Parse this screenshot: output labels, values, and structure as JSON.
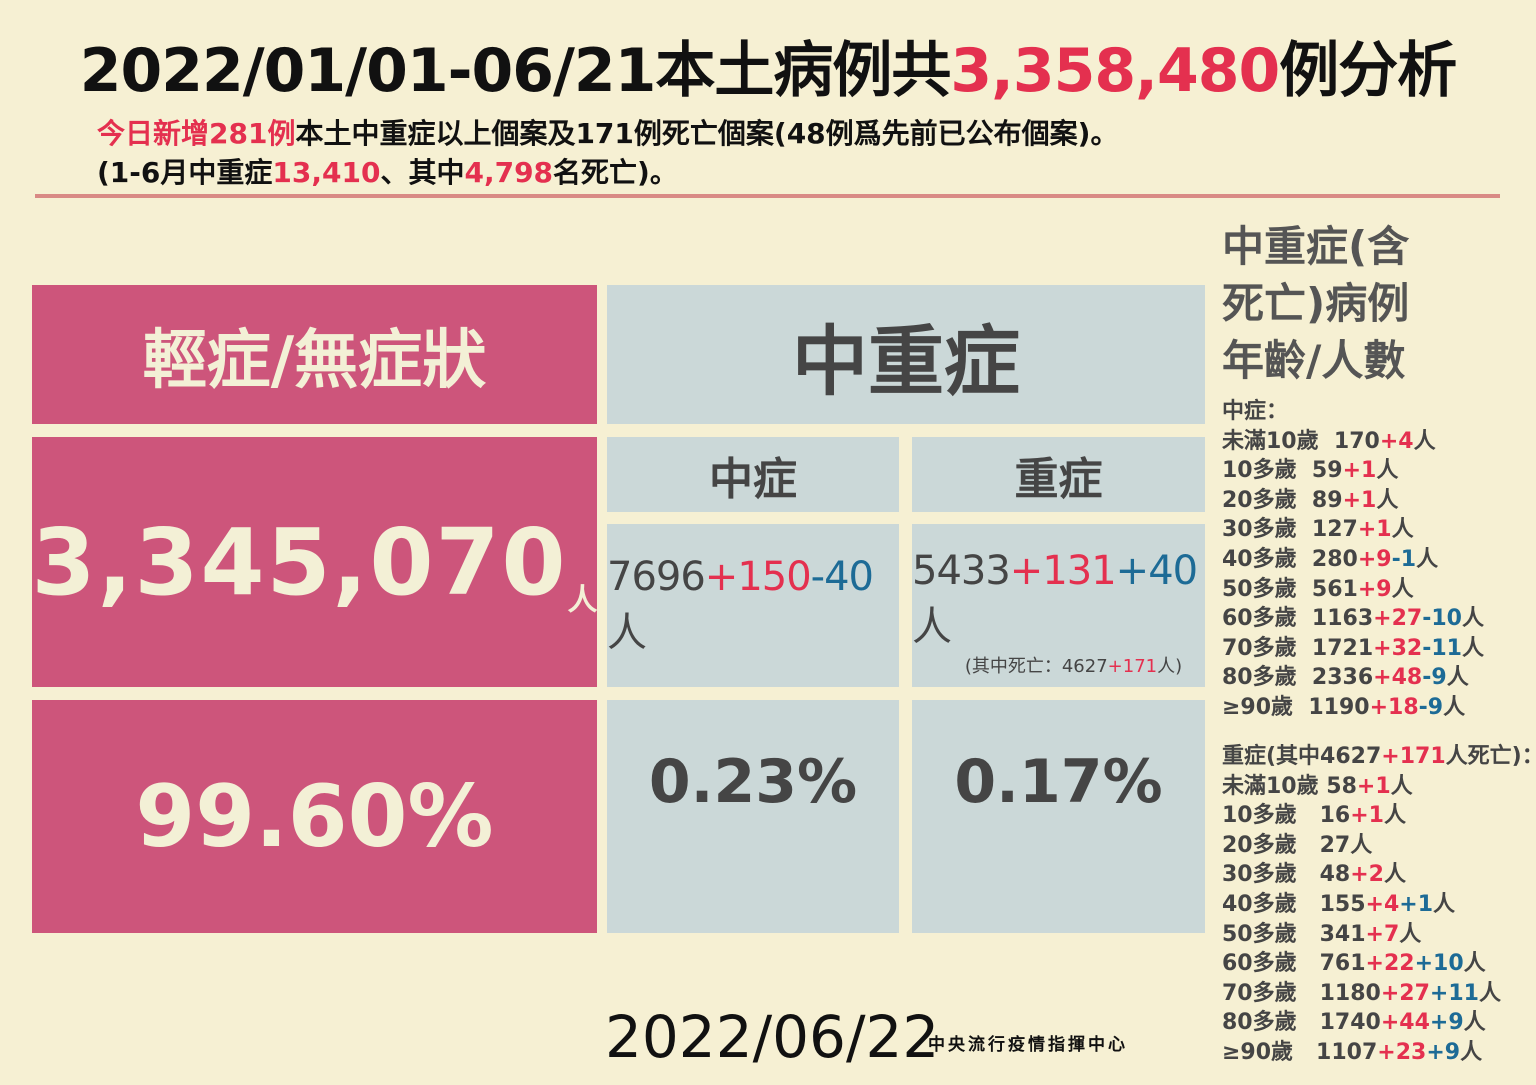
{
  "colors": {
    "background": "#f6f0d3",
    "pink": "#cd557b",
    "pale": "#cbd8d8",
    "red": "#e4304f",
    "blue": "#1d6b96",
    "dark": "#454545"
  },
  "title": [
    {
      "t": "2022/01/01-06/21本土病例共",
      "c": "k"
    },
    {
      "t": "3,358,480",
      "c": "r"
    },
    {
      "t": "例分析",
      "c": "k"
    }
  ],
  "subtitle_line1": [
    {
      "t": "今日新增281例",
      "c": "r"
    },
    {
      "t": "本土中重症以上個案及171例死亡個案(48例爲先前已公布個案)。",
      "c": "k"
    }
  ],
  "subtitle_line2": [
    {
      "t": "(1-6月中重症",
      "c": "k"
    },
    {
      "t": "13,410",
      "c": "r"
    },
    {
      "t": "、其中",
      "c": "k"
    },
    {
      "t": "4,798",
      "c": "r"
    },
    {
      "t": "名死亡)。",
      "c": "k"
    }
  ],
  "mild": {
    "header": "輕症/無症狀",
    "count": "3,345,070",
    "unit": "人",
    "percent": "99.60%"
  },
  "severe": {
    "header": "中重症",
    "moderate": {
      "label": "中症",
      "count": [
        {
          "t": "7696",
          "c": "d"
        },
        {
          "t": "+150",
          "c": "r"
        },
        {
          "t": "-40",
          "c": "b"
        },
        {
          "t": "人",
          "c": "d"
        }
      ],
      "percent": "0.23%"
    },
    "critical": {
      "label": "重症",
      "count": [
        {
          "t": "5433",
          "c": "d"
        },
        {
          "t": "+131",
          "c": "r"
        },
        {
          "t": "+40",
          "c": "b"
        },
        {
          "t": "人",
          "c": "d"
        }
      ],
      "note": [
        {
          "t": "(其中死亡：4627",
          "c": "d"
        },
        {
          "t": "+171",
          "c": "r"
        },
        {
          "t": "人)",
          "c": "d"
        }
      ],
      "percent": "0.17%"
    }
  },
  "age_panel": {
    "heading": [
      "中重症(含",
      "死亡)病例",
      "年齡/人數"
    ],
    "moderate_title": [
      {
        "t": "中症：",
        "c": "d"
      }
    ],
    "moderate_rows": [
      [
        {
          "t": "未滿10歲  170",
          "c": "d"
        },
        {
          "t": "+4",
          "c": "r"
        },
        {
          "t": "人",
          "c": "d"
        }
      ],
      [
        {
          "t": "10多歲  59",
          "c": "d"
        },
        {
          "t": "+1",
          "c": "r"
        },
        {
          "t": "人",
          "c": "d"
        }
      ],
      [
        {
          "t": "20多歲  89",
          "c": "d"
        },
        {
          "t": "+1",
          "c": "r"
        },
        {
          "t": "人",
          "c": "d"
        }
      ],
      [
        {
          "t": "30多歲  127",
          "c": "d"
        },
        {
          "t": "+1",
          "c": "r"
        },
        {
          "t": "人",
          "c": "d"
        }
      ],
      [
        {
          "t": "40多歲  280",
          "c": "d"
        },
        {
          "t": "+9",
          "c": "r"
        },
        {
          "t": "-1",
          "c": "b"
        },
        {
          "t": "人",
          "c": "d"
        }
      ],
      [
        {
          "t": "50多歲  561",
          "c": "d"
        },
        {
          "t": "+9",
          "c": "r"
        },
        {
          "t": "人",
          "c": "d"
        }
      ],
      [
        {
          "t": "60多歲  1163",
          "c": "d"
        },
        {
          "t": "+27",
          "c": "r"
        },
        {
          "t": "-10",
          "c": "b"
        },
        {
          "t": "人",
          "c": "d"
        }
      ],
      [
        {
          "t": "70多歲  1721",
          "c": "d"
        },
        {
          "t": "+32",
          "c": "r"
        },
        {
          "t": "-11",
          "c": "b"
        },
        {
          "t": "人",
          "c": "d"
        }
      ],
      [
        {
          "t": "80多歲  2336",
          "c": "d"
        },
        {
          "t": "+48",
          "c": "r"
        },
        {
          "t": "-9",
          "c": "b"
        },
        {
          "t": "人",
          "c": "d"
        }
      ],
      [
        {
          "t": "≥90歲  1190",
          "c": "d"
        },
        {
          "t": "+18",
          "c": "r"
        },
        {
          "t": "-9",
          "c": "b"
        },
        {
          "t": "人",
          "c": "d"
        }
      ]
    ],
    "critical_title": [
      {
        "t": "重症(其中4627",
        "c": "d"
      },
      {
        "t": "+171",
        "c": "r"
      },
      {
        "t": "人死亡)：",
        "c": "d"
      }
    ],
    "critical_rows": [
      [
        {
          "t": "未滿10歲 58",
          "c": "d"
        },
        {
          "t": "+1",
          "c": "r"
        },
        {
          "t": "人",
          "c": "d"
        }
      ],
      [
        {
          "t": "10多歲   16",
          "c": "d"
        },
        {
          "t": "+1",
          "c": "r"
        },
        {
          "t": "人",
          "c": "d"
        }
      ],
      [
        {
          "t": "20多歲   27人",
          "c": "d"
        }
      ],
      [
        {
          "t": "30多歲   48",
          "c": "d"
        },
        {
          "t": "+2",
          "c": "r"
        },
        {
          "t": "人",
          "c": "d"
        }
      ],
      [
        {
          "t": "40多歲   155",
          "c": "d"
        },
        {
          "t": "+4",
          "c": "r"
        },
        {
          "t": "+1",
          "c": "b"
        },
        {
          "t": "人",
          "c": "d"
        }
      ],
      [
        {
          "t": "50多歲   341",
          "c": "d"
        },
        {
          "t": "+7",
          "c": "r"
        },
        {
          "t": "人",
          "c": "d"
        }
      ],
      [
        {
          "t": "60多歲   761",
          "c": "d"
        },
        {
          "t": "+22",
          "c": "r"
        },
        {
          "t": "+10",
          "c": "b"
        },
        {
          "t": "人",
          "c": "d"
        }
      ],
      [
        {
          "t": "70多歲   1180",
          "c": "d"
        },
        {
          "t": "+27",
          "c": "r"
        },
        {
          "t": "+11",
          "c": "b"
        },
        {
          "t": "人",
          "c": "d"
        }
      ],
      [
        {
          "t": "80多歲   1740",
          "c": "d"
        },
        {
          "t": "+44",
          "c": "r"
        },
        {
          "t": "+9",
          "c": "b"
        },
        {
          "t": "人",
          "c": "d"
        }
      ],
      [
        {
          "t": "≥90歲   1107",
          "c": "d"
        },
        {
          "t": "+23",
          "c": "r"
        },
        {
          "t": "+9",
          "c": "b"
        },
        {
          "t": "人",
          "c": "d"
        }
      ]
    ]
  },
  "footer": {
    "date": "2022/06/22",
    "org": "中央流行疫情指揮中心"
  }
}
